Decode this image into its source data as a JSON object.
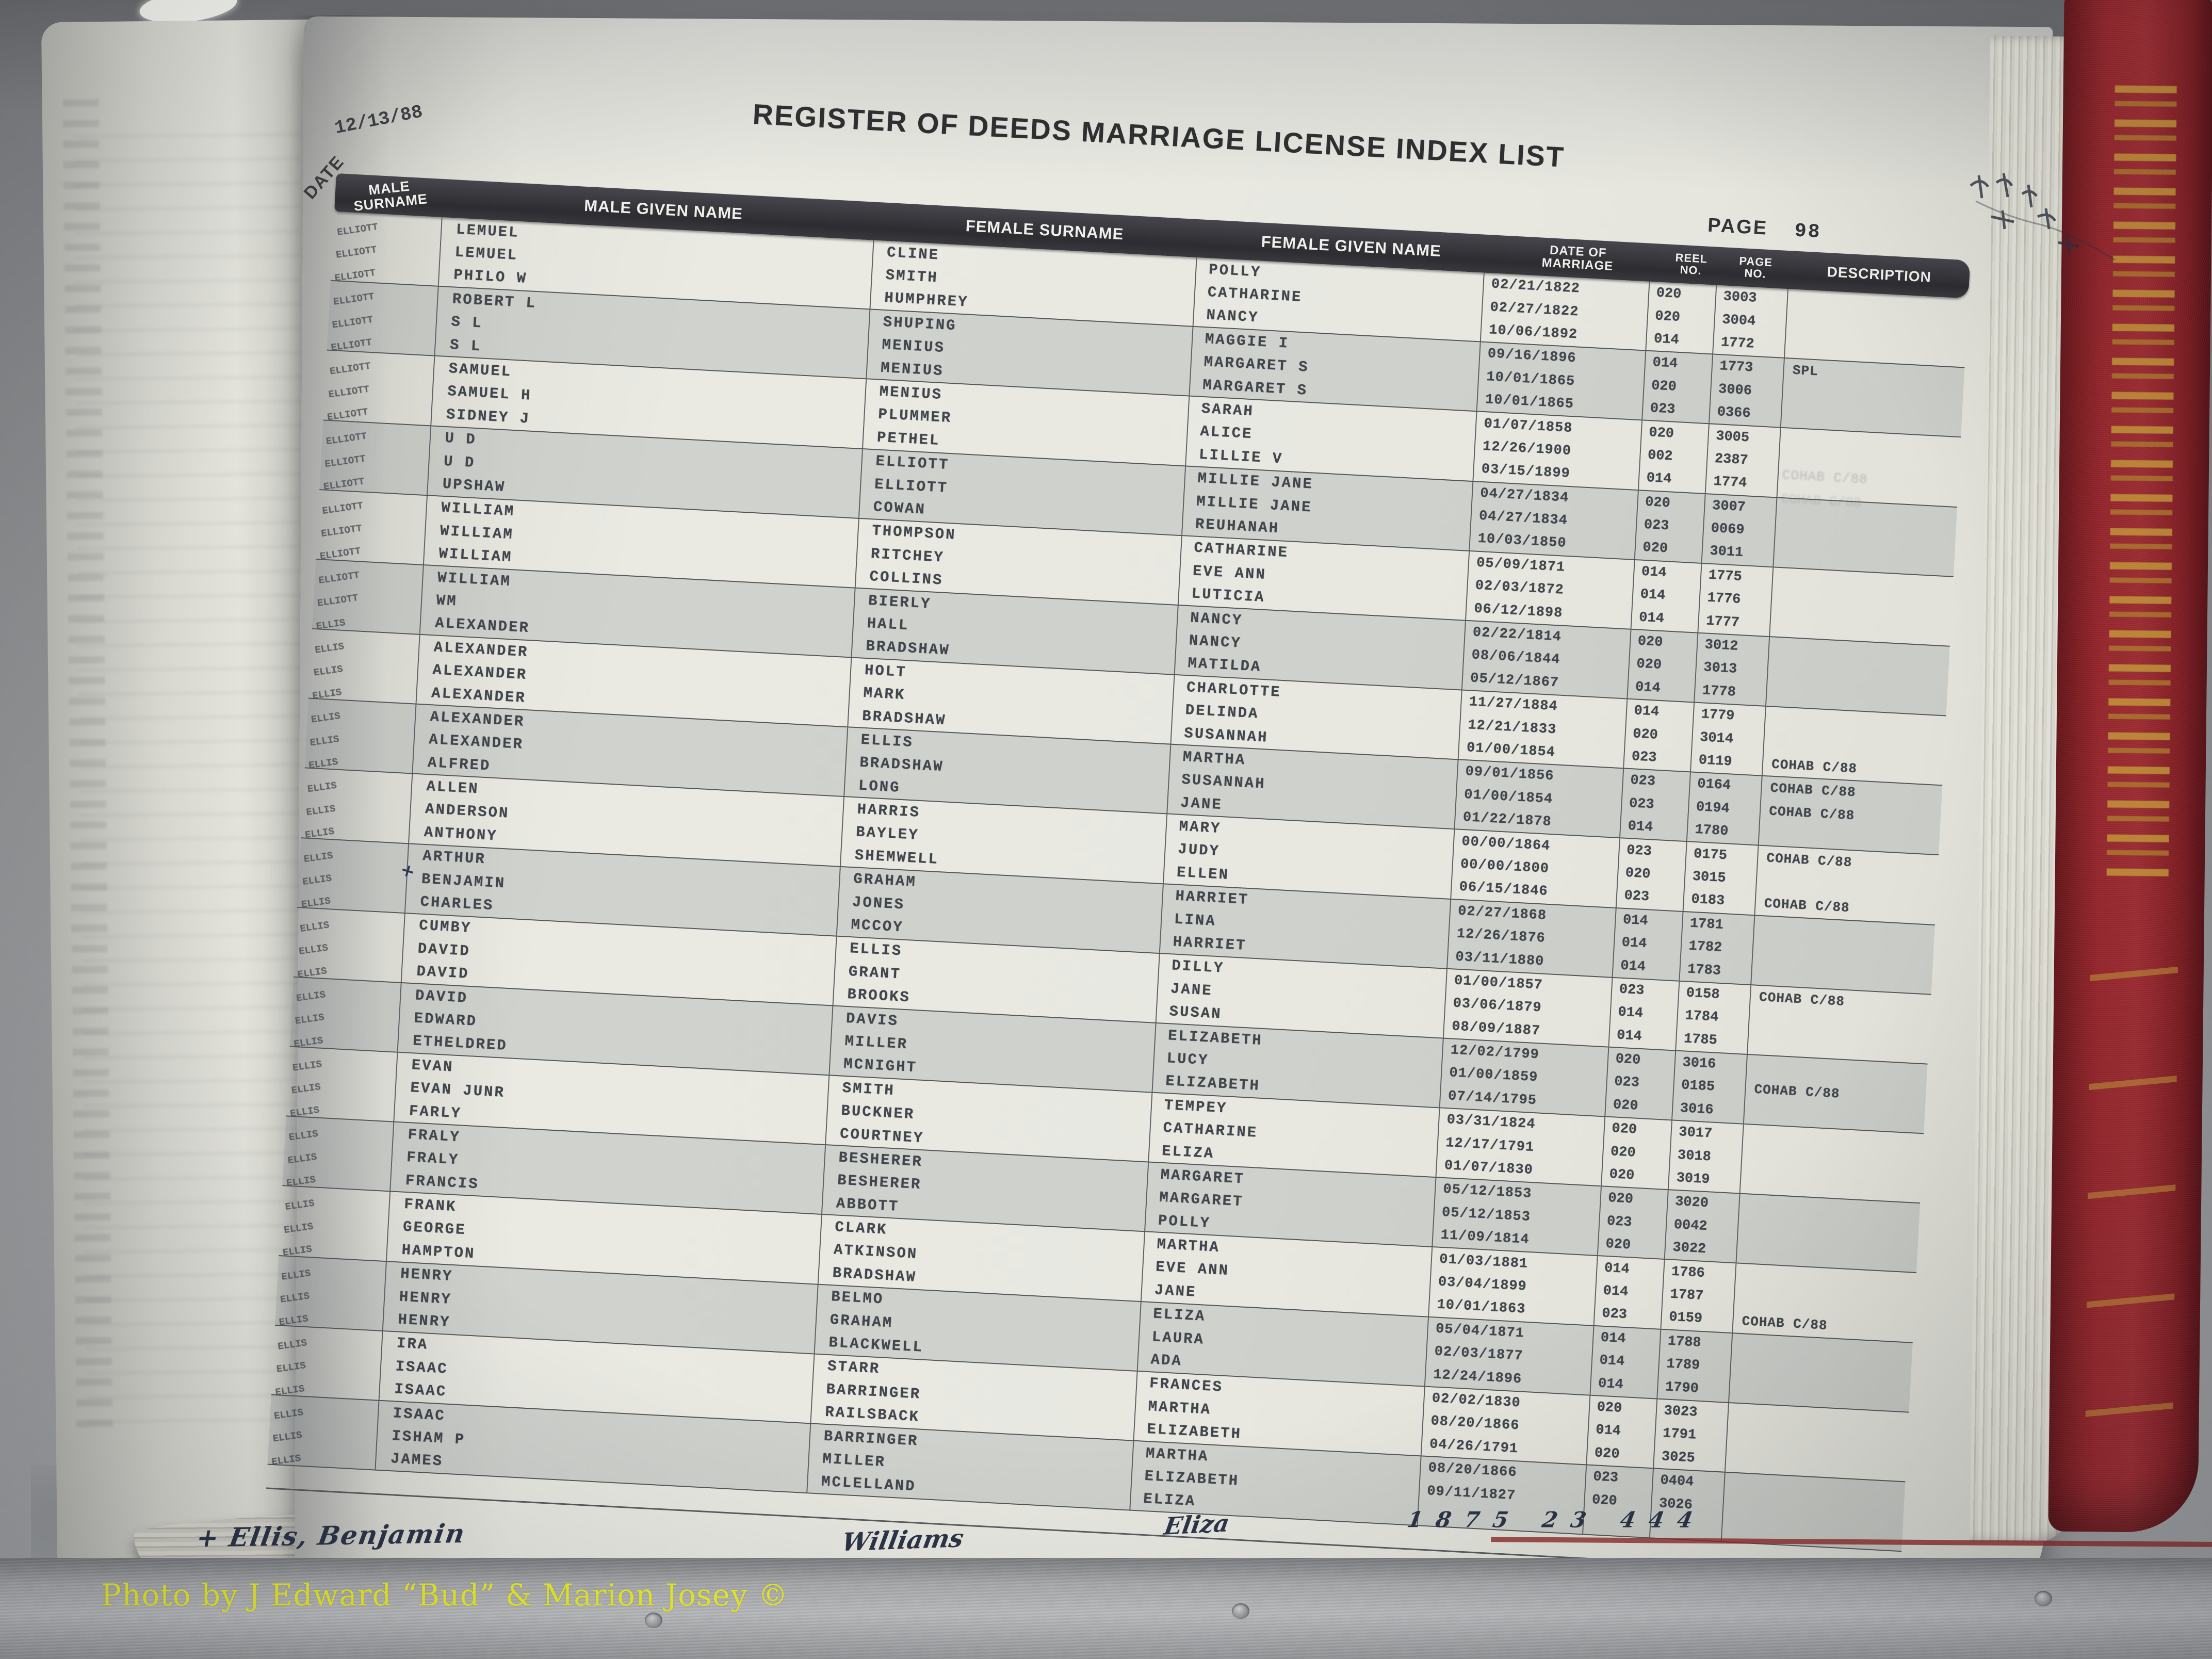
{
  "header": {
    "date_label": "DATE",
    "date_value": "12/13/88",
    "title": "REGISTER OF DEEDS MARRIAGE LICENSE INDEX LIST",
    "page_label": "PAGE",
    "page_value": "98"
  },
  "columns": [
    "MALE SURNAME",
    "MALE GIVEN NAME",
    "FEMALE SURNAME",
    "FEMALE GIVEN NAME",
    "DATE OF\nMARRIAGE",
    "REEL\nNO.",
    "PAGE\nNO.",
    "DESCRIPTION"
  ],
  "rows": [
    {
      "male_surname": "ELLIOTT",
      "male_given": "LEMUEL",
      "female_surname": "CLINE",
      "female_given": "POLLY",
      "date": "02/21/1822",
      "reel": "020",
      "page": "3003",
      "desc": ""
    },
    {
      "male_surname": "ELLIOTT",
      "male_given": "LEMUEL",
      "female_surname": "SMITH",
      "female_given": "CATHARINE",
      "date": "02/27/1822",
      "reel": "020",
      "page": "3004",
      "desc": ""
    },
    {
      "male_surname": "ELLIOTT",
      "male_given": "PHILO W",
      "female_surname": "HUMPHREY",
      "female_given": "NANCY",
      "date": "10/06/1892",
      "reel": "014",
      "page": "1772",
      "desc": ""
    },
    {
      "male_surname": "ELLIOTT",
      "male_given": "ROBERT L",
      "female_surname": "SHUPING",
      "female_given": "MAGGIE I",
      "date": "09/16/1896",
      "reel": "014",
      "page": "1773",
      "desc": "SPL"
    },
    {
      "male_surname": "ELLIOTT",
      "male_given": "S L",
      "female_surname": "MENIUS",
      "female_given": "MARGARET S",
      "date": "10/01/1865",
      "reel": "020",
      "page": "3006",
      "desc": ""
    },
    {
      "male_surname": "ELLIOTT",
      "male_given": "S L",
      "female_surname": "MENIUS",
      "female_given": "MARGARET S",
      "date": "10/01/1865",
      "reel": "023",
      "page": "0366",
      "desc": ""
    },
    {
      "male_surname": "ELLIOTT",
      "male_given": "SAMUEL",
      "female_surname": "MENIUS",
      "female_given": "SARAH",
      "date": "01/07/1858",
      "reel": "020",
      "page": "3005",
      "desc": ""
    },
    {
      "male_surname": "ELLIOTT",
      "male_given": "SAMUEL H",
      "female_surname": "PLUMMER",
      "female_given": "ALICE",
      "date": "12/26/1900",
      "reel": "002",
      "page": "2387",
      "desc": ""
    },
    {
      "male_surname": "ELLIOTT",
      "male_given": "SIDNEY J",
      "female_surname": "PETHEL",
      "female_given": "LILLIE V",
      "date": "03/15/1899",
      "reel": "014",
      "page": "1774",
      "desc": ""
    },
    {
      "male_surname": "ELLIOTT",
      "male_given": "U D",
      "female_surname": "ELLIOTT",
      "female_given": "MILLIE JANE",
      "date": "04/27/1834",
      "reel": "020",
      "page": "3007",
      "desc": ""
    },
    {
      "male_surname": "ELLIOTT",
      "male_given": "U D",
      "female_surname": "ELLIOTT",
      "female_given": "MILLIE JANE",
      "date": "04/27/1834",
      "reel": "023",
      "page": "0069",
      "desc": ""
    },
    {
      "male_surname": "ELLIOTT",
      "male_given": "UPSHAW",
      "female_surname": "COWAN",
      "female_given": "REUHANAH",
      "date": "10/03/1850",
      "reel": "020",
      "page": "3011",
      "desc": ""
    },
    {
      "male_surname": "ELLIOTT",
      "male_given": "WILLIAM",
      "female_surname": "THOMPSON",
      "female_given": "CATHARINE",
      "date": "05/09/1871",
      "reel": "014",
      "page": "1775",
      "desc": ""
    },
    {
      "male_surname": "ELLIOTT",
      "male_given": "WILLIAM",
      "female_surname": "RITCHEY",
      "female_given": "EVE ANN",
      "date": "02/03/1872",
      "reel": "014",
      "page": "1776",
      "desc": ""
    },
    {
      "male_surname": "ELLIOTT",
      "male_given": "WILLIAM",
      "female_surname": "COLLINS",
      "female_given": "LUTICIA",
      "date": "06/12/1898",
      "reel": "014",
      "page": "1777",
      "desc": ""
    },
    {
      "male_surname": "ELLIOTT",
      "male_given": "WILLIAM",
      "female_surname": "BIERLY",
      "female_given": "NANCY",
      "date": "02/22/1814",
      "reel": "020",
      "page": "3012",
      "desc": ""
    },
    {
      "male_surname": "ELLIOTT",
      "male_given": "WM",
      "female_surname": "HALL",
      "female_given": "NANCY",
      "date": "08/06/1844",
      "reel": "020",
      "page": "3013",
      "desc": ""
    },
    {
      "male_surname": "ELLIS",
      "male_given": "ALEXANDER",
      "female_surname": "BRADSHAW",
      "female_given": "MATILDA",
      "date": "05/12/1867",
      "reel": "014",
      "page": "1778",
      "desc": ""
    },
    {
      "male_surname": "ELLIS",
      "male_given": "ALEXANDER",
      "female_surname": "HOLT",
      "female_given": "CHARLOTTE",
      "date": "11/27/1884",
      "reel": "014",
      "page": "1779",
      "desc": ""
    },
    {
      "male_surname": "ELLIS",
      "male_given": "ALEXANDER",
      "female_surname": "MARK",
      "female_given": "DELINDA",
      "date": "12/21/1833",
      "reel": "020",
      "page": "3014",
      "desc": ""
    },
    {
      "male_surname": "ELLIS",
      "male_given": "ALEXANDER",
      "female_surname": "BRADSHAW",
      "female_given": "SUSANNAH",
      "date": "01/00/1854",
      "reel": "023",
      "page": "0119",
      "desc": "COHAB C/88"
    },
    {
      "male_surname": "ELLIS",
      "male_given": "ALEXANDER",
      "female_surname": "ELLIS",
      "female_given": "MARTHA",
      "date": "09/01/1856",
      "reel": "023",
      "page": "0164",
      "desc": "COHAB C/88"
    },
    {
      "male_surname": "ELLIS",
      "male_given": "ALEXANDER",
      "female_surname": "BRADSHAW",
      "female_given": "SUSANNAH",
      "date": "01/00/1854",
      "reel": "023",
      "page": "0194",
      "desc": "COHAB C/88"
    },
    {
      "male_surname": "ELLIS",
      "male_given": "ALFRED",
      "female_surname": "LONG",
      "female_given": "JANE",
      "date": "01/22/1878",
      "reel": "014",
      "page": "1780",
      "desc": ""
    },
    {
      "male_surname": "ELLIS",
      "male_given": "ALLEN",
      "female_surname": "HARRIS",
      "female_given": "MARY",
      "date": "00/00/1864",
      "reel": "023",
      "page": "0175",
      "desc": "COHAB C/88"
    },
    {
      "male_surname": "ELLIS",
      "male_given": "ANDERSON",
      "female_surname": "BAYLEY",
      "female_given": "JUDY",
      "date": "00/00/1800",
      "reel": "020",
      "page": "3015",
      "desc": ""
    },
    {
      "male_surname": "ELLIS",
      "male_given": "ANTHONY",
      "female_surname": "SHEMWELL",
      "female_given": "ELLEN",
      "date": "06/15/1846",
      "reel": "023",
      "page": "0183",
      "desc": "COHAB C/88"
    },
    {
      "male_surname": "ELLIS",
      "male_given": "ARTHUR",
      "female_surname": "GRAHAM",
      "female_given": "HARRIET",
      "date": "02/27/1868",
      "reel": "014",
      "page": "1781",
      "desc": ""
    },
    {
      "male_surname": "ELLIS",
      "male_given": "BENJAMIN",
      "female_surname": "JONES",
      "female_given": "LINA",
      "date": "12/26/1876",
      "reel": "014",
      "page": "1782",
      "desc": "",
      "margin_mark": "+"
    },
    {
      "male_surname": "ELLIS",
      "male_given": "CHARLES",
      "female_surname": "MCCOY",
      "female_given": "HARRIET",
      "date": "03/11/1880",
      "reel": "014",
      "page": "1783",
      "desc": ""
    },
    {
      "male_surname": "ELLIS",
      "male_given": "CUMBY",
      "female_surname": "ELLIS",
      "female_given": "DILLY",
      "date": "01/00/1857",
      "reel": "023",
      "page": "0158",
      "desc": "COHAB C/88"
    },
    {
      "male_surname": "ELLIS",
      "male_given": "DAVID",
      "female_surname": "GRANT",
      "female_given": "JANE",
      "date": "03/06/1879",
      "reel": "014",
      "page": "1784",
      "desc": ""
    },
    {
      "male_surname": "ELLIS",
      "male_given": "DAVID",
      "female_surname": "BROOKS",
      "female_given": "SUSAN",
      "date": "08/09/1887",
      "reel": "014",
      "page": "1785",
      "desc": ""
    },
    {
      "male_surname": "ELLIS",
      "male_given": "DAVID",
      "female_surname": "DAVIS",
      "female_given": "ELIZABETH",
      "date": "12/02/1799",
      "reel": "020",
      "page": "3016",
      "desc": ""
    },
    {
      "male_surname": "ELLIS",
      "male_given": "EDWARD",
      "female_surname": "MILLER",
      "female_given": "LUCY",
      "date": "01/00/1859",
      "reel": "023",
      "page": "0185",
      "desc": "COHAB C/88"
    },
    {
      "male_surname": "ELLIS",
      "male_given": "ETHELDRED",
      "female_surname": "MCNIGHT",
      "female_given": "ELIZABETH",
      "date": "07/14/1795",
      "reel": "020",
      "page": "3016",
      "desc": ""
    },
    {
      "male_surname": "ELLIS",
      "male_given": "EVAN",
      "female_surname": "SMITH",
      "female_given": "TEMPEY",
      "date": "03/31/1824",
      "reel": "020",
      "page": "3017",
      "desc": ""
    },
    {
      "male_surname": "ELLIS",
      "male_given": "EVAN JUNR",
      "female_surname": "BUCKNER",
      "female_given": "CATHARINE",
      "date": "12/17/1791",
      "reel": "020",
      "page": "3018",
      "desc": ""
    },
    {
      "male_surname": "ELLIS",
      "male_given": "FARLY",
      "female_surname": "COURTNEY",
      "female_given": "ELIZA",
      "date": "01/07/1830",
      "reel": "020",
      "page": "3019",
      "desc": ""
    },
    {
      "male_surname": "ELLIS",
      "male_given": "FRALY",
      "female_surname": "BESHERER",
      "female_given": "MARGARET",
      "date": "05/12/1853",
      "reel": "020",
      "page": "3020",
      "desc": ""
    },
    {
      "male_surname": "ELLIS",
      "male_given": "FRALY",
      "female_surname": "BESHERER",
      "female_given": "MARGARET",
      "date": "05/12/1853",
      "reel": "023",
      "page": "0042",
      "desc": ""
    },
    {
      "male_surname": "ELLIS",
      "male_given": "FRANCIS",
      "female_surname": "ABBOTT",
      "female_given": "POLLY",
      "date": "11/09/1814",
      "reel": "020",
      "page": "3022",
      "desc": ""
    },
    {
      "male_surname": "ELLIS",
      "male_given": "FRANK",
      "female_surname": "CLARK",
      "female_given": "MARTHA",
      "date": "01/03/1881",
      "reel": "014",
      "page": "1786",
      "desc": ""
    },
    {
      "male_surname": "ELLIS",
      "male_given": "GEORGE",
      "female_surname": "ATKINSON",
      "female_given": "EVE ANN",
      "date": "03/04/1899",
      "reel": "014",
      "page": "1787",
      "desc": ""
    },
    {
      "male_surname": "ELLIS",
      "male_given": "HAMPTON",
      "female_surname": "BRADSHAW",
      "female_given": "JANE",
      "date": "10/01/1863",
      "reel": "023",
      "page": "0159",
      "desc": "COHAB C/88"
    },
    {
      "male_surname": "ELLIS",
      "male_given": "HENRY",
      "female_surname": "BELMO",
      "female_given": "ELIZA",
      "date": "05/04/1871",
      "reel": "014",
      "page": "1788",
      "desc": ""
    },
    {
      "male_surname": "ELLIS",
      "male_given": "HENRY",
      "female_surname": "GRAHAM",
      "female_given": "LAURA",
      "date": "02/03/1877",
      "reel": "014",
      "page": "1789",
      "desc": ""
    },
    {
      "male_surname": "ELLIS",
      "male_given": "HENRY",
      "female_surname": "BLACKWELL",
      "female_given": "ADA",
      "date": "12/24/1896",
      "reel": "014",
      "page": "1790",
      "desc": ""
    },
    {
      "male_surname": "ELLIS",
      "male_given": "IRA",
      "female_surname": "STARR",
      "female_given": "FRANCES",
      "date": "02/02/1830",
      "reel": "020",
      "page": "3023",
      "desc": ""
    },
    {
      "male_surname": "ELLIS",
      "male_given": "ISAAC",
      "female_surname": "BARRINGER",
      "female_given": "MARTHA",
      "date": "08/20/1866",
      "reel": "014",
      "page": "1791",
      "desc": ""
    },
    {
      "male_surname": "ELLIS",
      "male_given": "ISAAC",
      "female_surname": "RAILSBACK",
      "female_given": "ELIZABETH",
      "date": "04/26/1791",
      "reel": "020",
      "page": "3025",
      "desc": ""
    },
    {
      "male_surname": "ELLIS",
      "male_given": "ISAAC",
      "female_surname": "BARRINGER",
      "female_given": "MARTHA",
      "date": "08/20/1866",
      "reel": "023",
      "page": "0404",
      "desc": ""
    },
    {
      "male_surname": "ELLIS",
      "male_given": "ISHAM P",
      "female_surname": "MILLER",
      "female_given": "ELIZABETH",
      "date": "09/11/1827",
      "reel": "020",
      "page": "3026",
      "desc": ""
    },
    {
      "male_surname": "ELLIS",
      "male_given": "JAMES",
      "female_surname": "MCLELLAND",
      "female_given": "ELIZA",
      "date": "",
      "reel": "",
      "page": "",
      "desc": ""
    }
  ],
  "handwritten": {
    "insert_numbers": "1875 23 444",
    "insert_female_surname": "Williams",
    "insert_female_given": "Eliza",
    "insert_male_note": "+ Ellis, Benjamin",
    "row_margin_mark": "+"
  },
  "ghost_bleedthrough": "COHAB C/88",
  "watermark": "Photo by J Edward “Bud” & Marion Josey ©"
}
